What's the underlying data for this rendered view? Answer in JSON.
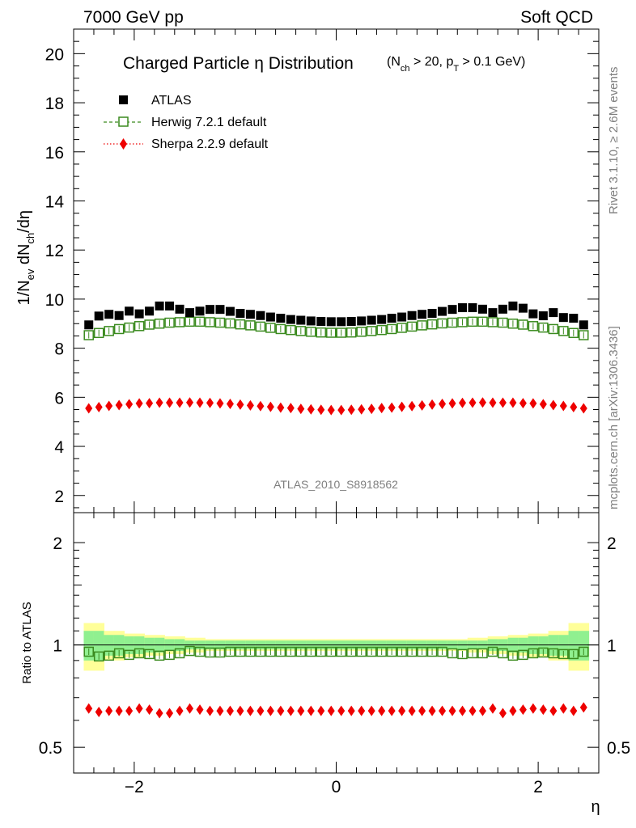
{
  "header": {
    "left": "7000 GeV pp",
    "right": "Soft QCD"
  },
  "side_text": {
    "rivet": "Rivet 3.1.10, ≥ 2.6M events",
    "mcplots": "mcplots.cern.ch [arXiv:1306.3436]"
  },
  "watermark": "ATLAS_2010_S8918562",
  "colors": {
    "atlas": "#000000",
    "herwig": "#3a8a1e",
    "sherpa": "#ee0000",
    "band_inner": "#90f090",
    "band_outer": "#ffff99"
  },
  "chart_data": [
    {
      "type": "scatter",
      "panel": "main",
      "title": "Charged Particle η Distribution",
      "title_sub": "(N_ch > 20, p_T > 0.1 GeV)",
      "xlabel": "η",
      "ylabel": "1/N_ev dN_ch/dη",
      "xlim": [
        -2.6,
        2.6
      ],
      "ylim": [
        1.3,
        21.0
      ],
      "yticks": [
        2,
        4,
        6,
        8,
        10,
        12,
        14,
        16,
        18,
        20
      ],
      "xticks": [
        -2,
        0,
        2
      ],
      "x": [
        -2.45,
        -2.35,
        -2.25,
        -2.15,
        -2.05,
        -1.95,
        -1.85,
        -1.75,
        -1.65,
        -1.55,
        -1.45,
        -1.35,
        -1.25,
        -1.15,
        -1.05,
        -0.95,
        -0.85,
        -0.75,
        -0.65,
        -0.55,
        -0.45,
        -0.35,
        -0.25,
        -0.15,
        -0.05,
        0.05,
        0.15,
        0.25,
        0.35,
        0.45,
        0.55,
        0.65,
        0.75,
        0.85,
        0.95,
        1.05,
        1.15,
        1.25,
        1.35,
        1.45,
        1.55,
        1.65,
        1.75,
        1.85,
        1.95,
        2.05,
        2.15,
        2.25,
        2.35,
        2.45
      ],
      "legend": [
        {
          "name": "ATLAS",
          "marker": "square-filled",
          "line": "none"
        },
        {
          "name": "Herwig 7.2.1 default",
          "marker": "square-open",
          "line": "dashed"
        },
        {
          "name": "Sherpa 2.2.9 default",
          "marker": "diamond-filled",
          "line": "dotted"
        }
      ],
      "series": [
        {
          "name": "ATLAS",
          "values": [
            8.95,
            9.31,
            9.38,
            9.33,
            9.51,
            9.4,
            9.51,
            9.72,
            9.72,
            9.59,
            9.45,
            9.51,
            9.58,
            9.58,
            9.5,
            9.42,
            9.38,
            9.33,
            9.27,
            9.22,
            9.17,
            9.14,
            9.11,
            9.09,
            9.08,
            9.08,
            9.09,
            9.11,
            9.14,
            9.17,
            9.22,
            9.27,
            9.33,
            9.38,
            9.42,
            9.5,
            9.58,
            9.65,
            9.65,
            9.59,
            9.45,
            9.59,
            9.72,
            9.63,
            9.4,
            9.32,
            9.45,
            9.25,
            9.22,
            8.95
          ]
        },
        {
          "name": "Herwig 7.2.1 default",
          "values": [
            8.53,
            8.62,
            8.7,
            8.78,
            8.84,
            8.9,
            8.96,
            9.0,
            9.04,
            9.06,
            9.08,
            9.08,
            9.06,
            9.04,
            9.01,
            8.97,
            8.93,
            8.88,
            8.83,
            8.78,
            8.74,
            8.7,
            8.67,
            8.64,
            8.63,
            8.63,
            8.64,
            8.67,
            8.7,
            8.74,
            8.78,
            8.83,
            8.88,
            8.93,
            8.97,
            9.01,
            9.04,
            9.06,
            9.08,
            9.08,
            9.06,
            9.04,
            9.0,
            8.96,
            8.9,
            8.84,
            8.78,
            8.7,
            8.62,
            8.53
          ]
        },
        {
          "name": "Sherpa 2.2.9 default",
          "values": [
            5.55,
            5.6,
            5.65,
            5.68,
            5.72,
            5.75,
            5.76,
            5.78,
            5.78,
            5.78,
            5.79,
            5.78,
            5.77,
            5.75,
            5.73,
            5.7,
            5.67,
            5.64,
            5.61,
            5.58,
            5.56,
            5.53,
            5.51,
            5.49,
            5.48,
            5.48,
            5.49,
            5.51,
            5.53,
            5.56,
            5.58,
            5.61,
            5.64,
            5.67,
            5.7,
            5.73,
            5.75,
            5.77,
            5.78,
            5.79,
            5.78,
            5.78,
            5.78,
            5.76,
            5.75,
            5.72,
            5.68,
            5.65,
            5.6,
            5.55
          ]
        }
      ]
    },
    {
      "type": "scatter",
      "panel": "ratio",
      "ylabel": "Ratio to ATLAS",
      "xlabel": "η",
      "xlim": [
        -2.6,
        2.6
      ],
      "ylim": [
        0.42,
        2.45
      ],
      "yticks": [
        0.5,
        1,
        2
      ],
      "yticklabels": [
        "0.5",
        "1",
        "2"
      ],
      "xticks": [
        -2,
        0,
        2
      ],
      "xticklabels": [
        "−2",
        "0",
        "2"
      ],
      "x": [
        -2.45,
        -2.35,
        -2.25,
        -2.15,
        -2.05,
        -1.95,
        -1.85,
        -1.75,
        -1.65,
        -1.55,
        -1.45,
        -1.35,
        -1.25,
        -1.15,
        -1.05,
        -0.95,
        -0.85,
        -0.75,
        -0.65,
        -0.55,
        -0.45,
        -0.35,
        -0.25,
        -0.15,
        -0.05,
        0.05,
        0.15,
        0.25,
        0.35,
        0.45,
        0.55,
        0.65,
        0.75,
        0.85,
        0.95,
        1.05,
        1.15,
        1.25,
        1.35,
        1.45,
        1.55,
        1.65,
        1.75,
        1.85,
        1.95,
        2.05,
        2.15,
        2.25,
        2.35,
        2.45
      ],
      "band_outer_halfwidth": [
        0.16,
        0.16,
        0.1,
        0.1,
        0.08,
        0.08,
        0.07,
        0.07,
        0.06,
        0.06,
        0.05,
        0.05,
        0.04,
        0.04,
        0.04,
        0.04,
        0.04,
        0.04,
        0.04,
        0.04,
        0.04,
        0.04,
        0.04,
        0.04,
        0.04,
        0.04,
        0.04,
        0.04,
        0.04,
        0.04,
        0.04,
        0.04,
        0.04,
        0.04,
        0.04,
        0.04,
        0.04,
        0.04,
        0.05,
        0.05,
        0.06,
        0.06,
        0.07,
        0.07,
        0.08,
        0.08,
        0.1,
        0.1,
        0.16,
        0.16
      ],
      "band_inner_halfwidth": [
        0.1,
        0.1,
        0.07,
        0.07,
        0.06,
        0.06,
        0.05,
        0.05,
        0.04,
        0.04,
        0.03,
        0.03,
        0.03,
        0.03,
        0.03,
        0.03,
        0.03,
        0.03,
        0.03,
        0.03,
        0.03,
        0.03,
        0.03,
        0.03,
        0.03,
        0.03,
        0.03,
        0.03,
        0.03,
        0.03,
        0.03,
        0.03,
        0.03,
        0.03,
        0.03,
        0.03,
        0.03,
        0.03,
        0.03,
        0.03,
        0.04,
        0.04,
        0.05,
        0.05,
        0.06,
        0.06,
        0.07,
        0.07,
        0.1,
        0.1
      ],
      "series": [
        {
          "name": "Herwig 7.2.1 default",
          "values": [
            0.955,
            0.925,
            0.93,
            0.945,
            0.935,
            0.945,
            0.94,
            0.93,
            0.935,
            0.945,
            0.96,
            0.955,
            0.95,
            0.95,
            0.955,
            0.955,
            0.955,
            0.955,
            0.955,
            0.955,
            0.955,
            0.955,
            0.955,
            0.955,
            0.955,
            0.955,
            0.955,
            0.955,
            0.955,
            0.955,
            0.955,
            0.955,
            0.955,
            0.955,
            0.955,
            0.955,
            0.945,
            0.94,
            0.945,
            0.945,
            0.955,
            0.945,
            0.93,
            0.935,
            0.945,
            0.95,
            0.945,
            0.94,
            0.94,
            0.955
          ]
        },
        {
          "name": "Sherpa 2.2.9 default",
          "values": [
            0.65,
            0.635,
            0.64,
            0.64,
            0.64,
            0.65,
            0.645,
            0.63,
            0.63,
            0.64,
            0.65,
            0.645,
            0.64,
            0.64,
            0.64,
            0.64,
            0.64,
            0.64,
            0.64,
            0.64,
            0.64,
            0.64,
            0.64,
            0.64,
            0.64,
            0.64,
            0.64,
            0.64,
            0.64,
            0.64,
            0.64,
            0.64,
            0.64,
            0.64,
            0.64,
            0.64,
            0.64,
            0.64,
            0.64,
            0.64,
            0.65,
            0.63,
            0.64,
            0.645,
            0.65,
            0.645,
            0.64,
            0.65,
            0.64,
            0.655
          ]
        }
      ]
    }
  ]
}
